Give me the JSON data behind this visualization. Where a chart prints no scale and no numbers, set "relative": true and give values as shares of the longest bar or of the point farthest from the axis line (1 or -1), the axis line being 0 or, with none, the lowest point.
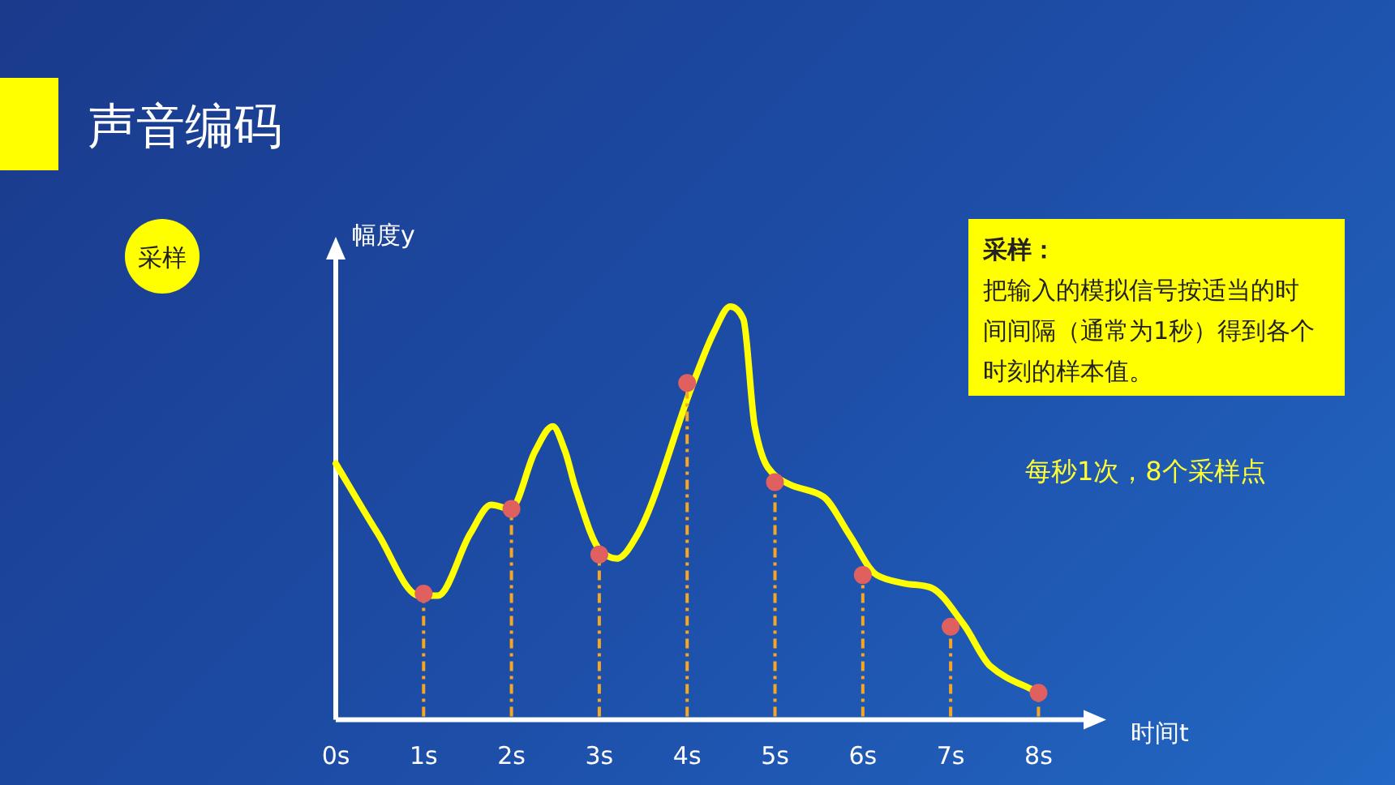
{
  "chart_data": {
    "type": "line",
    "title": "声音编码",
    "xlabel": "时间t",
    "ylabel": "幅度y",
    "relative": true,
    "annotations": [
      "采样",
      "采样：",
      "把输入的模拟信号按适当的时间间隔（通常为1秒）得到各个时刻的样本值。",
      "每秒1次，8个采样点"
    ],
    "xlim": [
      0,
      8.55
    ],
    "xticks": [
      {
        "value": 0,
        "label": "0s"
      },
      {
        "value": 1,
        "label": "1s"
      },
      {
        "value": 2,
        "label": "2s"
      },
      {
        "value": 3,
        "label": "3s"
      },
      {
        "value": 4,
        "label": "4s"
      },
      {
        "value": 5,
        "label": "5s"
      },
      {
        "value": 6,
        "label": "6s"
      },
      {
        "value": 7,
        "label": "7s"
      },
      {
        "value": 8,
        "label": "8s"
      }
    ],
    "grid": false,
    "series": [
      {
        "type": "line",
        "color": "#ffff00",
        "x": [
          0,
          0.48,
          0.95,
          1.16,
          1.53,
          1.77,
          1.99,
          2.27,
          2.47,
          2.61,
          2.73,
          3.01,
          3.2,
          3.44,
          4.06,
          4.31,
          4.49,
          4.64,
          4.77,
          4.92,
          5.16,
          5.55,
          5.84,
          6.16,
          6.47,
          6.77,
          7.15,
          7.45,
          8
        ],
        "values": [
          0.62,
          0.45,
          0.3,
          0.3,
          0.45,
          0.52,
          0.51,
          0.65,
          0.71,
          0.65,
          0.56,
          0.41,
          0.39,
          0.45,
          0.81,
          0.94,
          1,
          0.97,
          0.71,
          0.61,
          0.57,
          0.54,
          0.45,
          0.35,
          0.33,
          0.32,
          0.23,
          0.13,
          0.065
        ]
      },
      {
        "type": "lollipop",
        "color": "#e06060",
        "line_style": "dashed",
        "x": [
          1,
          2,
          3,
          4,
          5,
          6,
          7,
          8
        ],
        "values": [
          0.305,
          0.51,
          0.4,
          0.815,
          0.575,
          0.35,
          0.225,
          0.065
        ]
      }
    ]
  }
}
